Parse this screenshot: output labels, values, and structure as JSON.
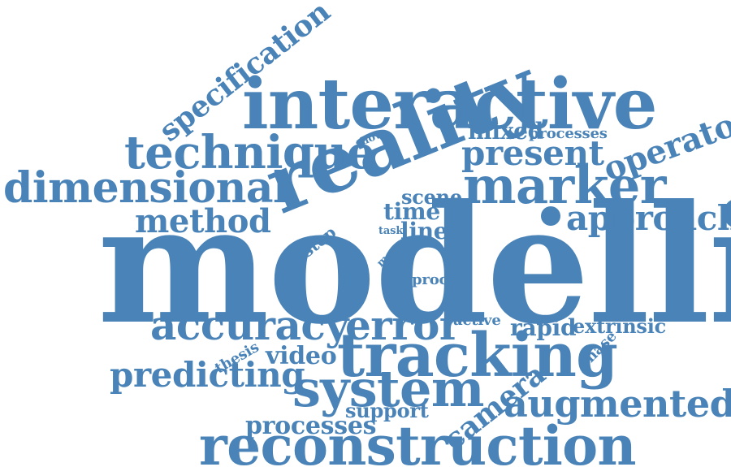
{
  "colors": {
    "word": "#4a83b7",
    "background": "#ffffff"
  },
  "words": [
    "modelling",
    "reality",
    "interactive",
    "tracking",
    "system",
    "reconstruction",
    "technique",
    "marker",
    "dimensional",
    "accuracy",
    "error",
    "augmented",
    "present",
    "approach",
    "method",
    "operator",
    "specification",
    "predicting",
    "mixed",
    "processes",
    "video",
    "camera",
    "scene",
    "time",
    "line",
    "rapid",
    "extrinsic",
    "support",
    "step",
    "thesis",
    "active",
    "phase",
    "proc",
    "more",
    "task",
    "show",
    "single"
  ]
}
